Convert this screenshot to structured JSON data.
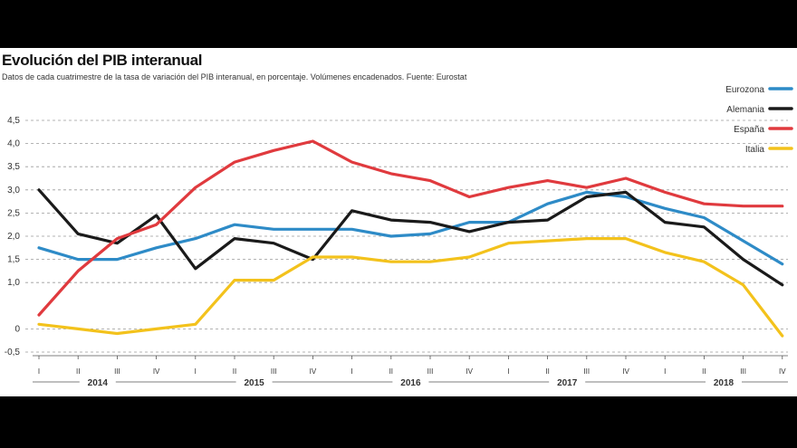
{
  "header": {
    "title": "Evolución del PIB interanual",
    "subtitle": "Datos de cada cuatrimestre de la tasa de variación del PIB interanual, en porcentaje. Volúmenes encadenados. Fuente: Eurostat"
  },
  "chart_data": {
    "type": "line",
    "title": "Evolución del PIB interanual",
    "xlabel": "",
    "ylabel": "",
    "ylim": [
      -0.5,
      4.5
    ],
    "yticks": [
      -0.5,
      0,
      1.0,
      1.5,
      2.0,
      2.5,
      3.0,
      3.5,
      4.0,
      4.5
    ],
    "ytick_labels": [
      "-0,5",
      "0",
      "1,0",
      "1,5",
      "2,0",
      "2,5",
      "3,0",
      "3,5",
      "4,0",
      "4,5"
    ],
    "grid": "horizontal dashed",
    "legend_position": "top-right",
    "categories": [
      "I",
      "II",
      "III",
      "IV",
      "I",
      "II",
      "III",
      "IV",
      "I",
      "II",
      "III",
      "IV",
      "I",
      "II",
      "III",
      "IV",
      "I",
      "II",
      "III",
      "IV"
    ],
    "years": [
      "2014",
      "2015",
      "2016",
      "2017",
      "2018"
    ],
    "series": [
      {
        "name": "Eurozona",
        "color": "#2e8bc7",
        "values": [
          1.75,
          1.5,
          1.5,
          1.75,
          1.95,
          2.25,
          2.15,
          2.15,
          2.15,
          2.0,
          2.05,
          2.3,
          2.3,
          2.7,
          2.95,
          2.85,
          2.6,
          2.4,
          1.9,
          1.4
        ]
      },
      {
        "name": "Alemania",
        "color": "#1a1a1a",
        "values": [
          3.0,
          2.05,
          1.85,
          2.45,
          1.3,
          1.95,
          1.85,
          1.5,
          2.55,
          2.35,
          2.3,
          2.1,
          2.3,
          2.35,
          2.85,
          2.95,
          2.3,
          2.2,
          1.5,
          0.95
        ]
      },
      {
        "name": "España",
        "color": "#e03a3e",
        "values": [
          0.3,
          1.25,
          1.95,
          2.25,
          3.05,
          3.6,
          3.85,
          4.05,
          3.6,
          3.35,
          3.2,
          2.85,
          3.05,
          3.2,
          3.05,
          3.25,
          2.95,
          2.7,
          2.65,
          2.65
        ]
      },
      {
        "name": "Italia",
        "color": "#f3c21c",
        "values": [
          0.1,
          0.0,
          -0.1,
          0.0,
          0.1,
          1.05,
          1.05,
          1.55,
          1.55,
          1.45,
          1.45,
          1.55,
          1.85,
          1.9,
          1.95,
          1.95,
          1.65,
          1.45,
          0.95,
          -0.15
        ]
      }
    ]
  }
}
